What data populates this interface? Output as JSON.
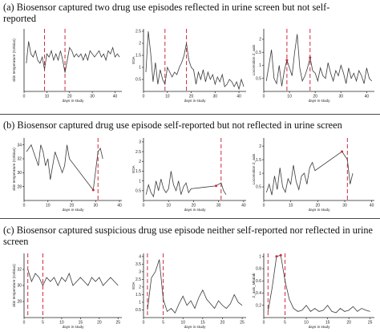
{
  "panels": [
    {
      "title": "(a) Biosensor captured two drug use episodes reflected in urine screen but not self-reported"
    },
    {
      "title": "(b) Biosensor captured drug use episode self-reported but not reflected in urine screen"
    },
    {
      "title": "(c) Biosensor captured suspicious drug use episode neither  self-reported nor reflected in urine screen"
    }
  ],
  "chart_data": [
    {
      "panel": "a",
      "type": "line",
      "xlabel": "days in study",
      "ylabel": "skin temperature (Celsius)",
      "xlim": [
        0,
        43
      ],
      "ylim": [
        26,
        36
      ],
      "xticks": [
        0,
        10,
        20,
        30,
        40
      ],
      "yticks": [],
      "markers": [
        9,
        18
      ],
      "highlight": [],
      "x": [
        1,
        2,
        3,
        4,
        5,
        6,
        7,
        8,
        9,
        10,
        11,
        12,
        13,
        14,
        15,
        16,
        17,
        18,
        19,
        20,
        21,
        22,
        23,
        24,
        25,
        26,
        27,
        28,
        29,
        30,
        31,
        32,
        33,
        34,
        35,
        36,
        37,
        38,
        39,
        40,
        41,
        42
      ],
      "y": [
        30.5,
        34,
        32,
        31.5,
        32.5,
        31,
        30.5,
        31.5,
        29.5,
        32,
        31.5,
        32.5,
        31,
        32,
        31,
        32.5,
        31,
        29,
        31,
        33,
        32.5,
        31.5,
        32,
        31.5,
        32,
        31,
        32,
        31,
        32.5,
        32,
        31.5,
        32,
        32.5,
        31.5,
        32,
        31,
        32.5,
        32,
        33,
        31.5,
        32,
        31.5
      ]
    },
    {
      "panel": "a",
      "type": "line",
      "xlabel": "days in study",
      "ylabel": "EDA",
      "xlim": [
        0,
        43
      ],
      "ylim": [
        0,
        2.6
      ],
      "xticks": [
        0,
        10,
        20,
        30,
        40
      ],
      "yticks": [
        0.5,
        1,
        1.5,
        2,
        2.5
      ],
      "markers": [
        9,
        18
      ],
      "highlight": [],
      "x": [
        1,
        2,
        3,
        4,
        5,
        6,
        7,
        8,
        9,
        10,
        11,
        12,
        13,
        14,
        15,
        16,
        17,
        18,
        19,
        20,
        21,
        22,
        23,
        24,
        25,
        26,
        27,
        28,
        29,
        30,
        31,
        32,
        33,
        34,
        35,
        36,
        37,
        38,
        39,
        40,
        41,
        42
      ],
      "y": [
        0.8,
        2.5,
        1.6,
        0.4,
        1.2,
        0.3,
        0.9,
        0.5,
        0.3,
        1.0,
        0.8,
        0.6,
        0.8,
        0.7,
        1.0,
        1.2,
        1.5,
        2.0,
        1.3,
        1.0,
        0.9,
        0.3,
        0.8,
        0.5,
        0.9,
        0.4,
        0.8,
        0.5,
        0.7,
        0.3,
        0.6,
        0.4,
        0.7,
        0.2,
        0.3,
        0.5,
        0.4,
        0.2,
        0.4,
        0.1,
        0.5,
        0.2
      ]
    },
    {
      "panel": "a",
      "type": "line",
      "xlabel": "days in study",
      "ylabel": "Locomotion Z_axis",
      "xlim": [
        0,
        43
      ],
      "ylim": [
        0,
        2.4
      ],
      "xticks": [
        0,
        10,
        20,
        30,
        40
      ],
      "yticks": [
        0.5,
        1,
        1.5,
        2
      ],
      "markers": [
        9,
        18
      ],
      "highlight": [
        9,
        18
      ],
      "x": [
        1,
        2,
        3,
        4,
        5,
        6,
        7,
        8,
        9,
        10,
        11,
        12,
        13,
        14,
        15,
        16,
        17,
        18,
        19,
        20,
        21,
        22,
        23,
        24,
        25,
        26,
        27,
        28,
        29,
        30,
        31,
        32,
        33,
        34,
        35,
        36,
        37,
        38,
        39,
        40,
        41,
        42
      ],
      "y": [
        0.4,
        1.0,
        1.6,
        0.5,
        0.3,
        1.0,
        0.2,
        0.8,
        1.2,
        0.9,
        0.6,
        1.5,
        2.2,
        0.9,
        0.4,
        0.6,
        0.9,
        1.3,
        0.8,
        0.7,
        0.4,
        0.9,
        0.6,
        0.5,
        1.1,
        0.7,
        0.4,
        0.8,
        0.6,
        1.0,
        0.7,
        0.3,
        0.9,
        0.5,
        0.7,
        0.4,
        0.8,
        0.6,
        0.3,
        0.9,
        0.5,
        0.4
      ]
    },
    {
      "panel": "b",
      "type": "line",
      "xlabel": "days in study",
      "ylabel": "skin temperature (Celsius)",
      "xlim": [
        0,
        41
      ],
      "ylim": [
        26,
        35
      ],
      "xticks": [
        0,
        10,
        20,
        30,
        40
      ],
      "yticks": [
        28,
        30,
        32,
        34
      ],
      "markers": [
        31
      ],
      "highlight": [
        29
      ],
      "x": [
        1,
        2,
        3,
        4,
        5,
        6,
        7,
        8,
        9,
        10,
        11,
        12,
        13,
        14,
        15,
        16,
        17,
        18,
        19,
        29,
        31,
        32,
        33
      ],
      "y": [
        33,
        33.5,
        34,
        33,
        32,
        31,
        34,
        33,
        31,
        32,
        29,
        31,
        33,
        32,
        31,
        30,
        31,
        34,
        32,
        27.5,
        33,
        33.5,
        32
      ]
    },
    {
      "panel": "b",
      "type": "line",
      "xlabel": "days in study",
      "ylabel": "EDA",
      "xlim": [
        0,
        41
      ],
      "ylim": [
        0,
        3.2
      ],
      "xticks": [
        0,
        10,
        20,
        30,
        40
      ],
      "yticks": [
        0.5,
        1,
        1.5,
        2,
        2.5,
        3
      ],
      "markers": [
        31
      ],
      "highlight": [
        29
      ],
      "x": [
        1,
        2,
        3,
        4,
        5,
        6,
        7,
        8,
        9,
        10,
        11,
        12,
        13,
        14,
        15,
        16,
        17,
        18,
        19,
        29,
        31,
        32,
        33
      ],
      "y": [
        0.3,
        0.8,
        0.4,
        0.2,
        1.0,
        0.5,
        1.1,
        0.6,
        0.4,
        0.6,
        1.5,
        0.8,
        0.5,
        1.0,
        0.3,
        0.7,
        0.9,
        0.4,
        0.6,
        0.75,
        0.9,
        0.5,
        0.3
      ]
    },
    {
      "panel": "b",
      "type": "line",
      "xlabel": "days in study",
      "ylabel": "Locomotion Z_axis",
      "xlim": [
        0,
        41
      ],
      "ylim": [
        0,
        2.3
      ],
      "xticks": [
        0,
        10,
        20,
        30,
        40
      ],
      "yticks": [
        0.5,
        1,
        1.5,
        2
      ],
      "markers": [
        31
      ],
      "highlight": [
        29
      ],
      "x": [
        1,
        2,
        3,
        4,
        5,
        6,
        7,
        8,
        9,
        10,
        11,
        12,
        13,
        14,
        15,
        16,
        17,
        18,
        19,
        29,
        31,
        32,
        33
      ],
      "y": [
        0.3,
        0.6,
        0.2,
        0.9,
        0.4,
        1.2,
        0.5,
        0.3,
        0.8,
        0.6,
        1.3,
        0.7,
        0.4,
        0.9,
        1.0,
        0.6,
        1.2,
        1.4,
        1.1,
        1.8,
        1.5,
        0.6,
        1.0
      ]
    },
    {
      "panel": "c",
      "type": "line",
      "xlabel": "days in study",
      "ylabel": "skin temperature (Celsius)",
      "xlim": [
        0,
        26
      ],
      "ylim": [
        26,
        34
      ],
      "xticks": [
        0,
        5,
        10,
        15,
        20,
        25
      ],
      "yticks": [
        28,
        30,
        32
      ],
      "markers": [
        1,
        5
      ],
      "highlight": [],
      "x": [
        1,
        2,
        3,
        4,
        5,
        6,
        7,
        8,
        9,
        10,
        11,
        12,
        13,
        14,
        15,
        16,
        17,
        18,
        19,
        20,
        21,
        22,
        23,
        24,
        25
      ],
      "y": [
        32,
        30.5,
        31.5,
        31,
        30,
        31,
        30.5,
        31,
        30,
        31,
        30.5,
        31.5,
        30,
        30.5,
        31,
        30.5,
        30,
        31,
        30.5,
        31,
        30,
        30.5,
        31,
        30.5,
        30
      ]
    },
    {
      "panel": "c",
      "type": "line",
      "xlabel": "days in study",
      "ylabel": "EDA",
      "xlim": [
        0,
        26
      ],
      "ylim": [
        0,
        4.2
      ],
      "xticks": [
        0,
        5,
        10,
        15,
        20,
        25
      ],
      "yticks": [
        0.5,
        1,
        1.5,
        2,
        2.5,
        3,
        3.5,
        4
      ],
      "markers": [
        1,
        5
      ],
      "highlight": [],
      "x": [
        1,
        2,
        3,
        4,
        5,
        6,
        7,
        8,
        9,
        10,
        11,
        12,
        13,
        14,
        15,
        16,
        17,
        18,
        19,
        20,
        21,
        22,
        23,
        24,
        25
      ],
      "y": [
        0.5,
        2.6,
        3.0,
        3.8,
        1.2,
        0.4,
        0.6,
        0.3,
        0.9,
        1.4,
        0.8,
        1.1,
        0.6,
        1.3,
        1.8,
        1.2,
        0.9,
        0.6,
        1.1,
        0.8,
        0.6,
        0.9,
        1.5,
        1.0,
        0.8
      ]
    },
    {
      "panel": "c",
      "type": "line",
      "xlabel": "days in study",
      "ylabel": "Z_axis_Mkalab",
      "xlim": [
        0,
        26
      ],
      "ylim": [
        0,
        1.05
      ],
      "xticks": [
        0,
        5,
        10,
        15,
        20,
        25
      ],
      "yticks": [
        0.2,
        0.4,
        0.6,
        0.8,
        1
      ],
      "markers": [
        1,
        5
      ],
      "highlight": [
        3,
        4
      ],
      "x": [
        1,
        2,
        3,
        4,
        5,
        6,
        7,
        8,
        9,
        10,
        11,
        12,
        13,
        14,
        15,
        16,
        17,
        18,
        19,
        20,
        21,
        22,
        23,
        24,
        25
      ],
      "y": [
        0.1,
        0.5,
        1.0,
        1.02,
        0.6,
        0.3,
        0.15,
        0.1,
        0.12,
        0.2,
        0.1,
        0.15,
        0.1,
        0.12,
        0.2,
        0.1,
        0.08,
        0.15,
        0.1,
        0.12,
        0.18,
        0.1,
        0.15,
        0.12,
        0.1
      ]
    }
  ]
}
